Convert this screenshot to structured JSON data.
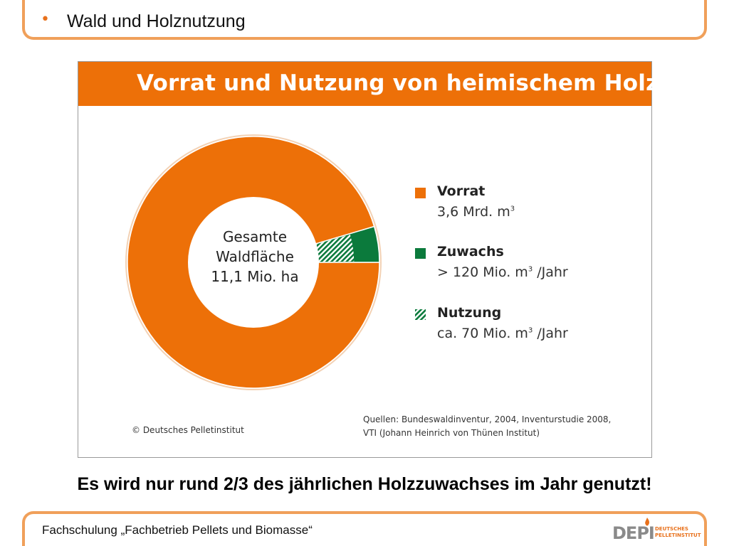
{
  "header": {
    "bullet": "•",
    "title": "Wald und Holznutzung"
  },
  "infographic": {
    "title": "Vorrat und Nutzung von heimischem Holz",
    "center_label": {
      "line1": "Gesamte",
      "line2": "Waldfläche",
      "line3": "11,1 Mio. ha"
    },
    "copyright": "© Deutsches Pelletinstitut",
    "sources": {
      "line1": "Quellen: Bundeswaldinventur, 2004, Inventurstudie 2008,",
      "line2": "VTI (Johann Heinrich von Thünen Institut)"
    }
  },
  "chart_data": {
    "type": "pie",
    "title": "Vorrat und Nutzung von heimischem Holz",
    "center_text": "Gesamte Waldfläche 11,1 Mio. ha",
    "slices": [
      {
        "name": "Vorrat",
        "value_text": "3,6 Mrd. m3",
        "share": 0.954,
        "color": "#ed7008",
        "pattern": "solid"
      },
      {
        "name": "Zuwachs",
        "value_text": "> 120 Mio. m3 /Jahr",
        "share": 0.046,
        "color": "#0b7a3c",
        "pattern": "solid"
      },
      {
        "name": "Nutzung",
        "value_text": "ca. 70 Mio. m3 /Jahr",
        "share_of_zuwachs": 0.58,
        "color": "#0b7a3c",
        "pattern": "hatched"
      }
    ],
    "legend": [
      {
        "label": "Vorrat",
        "value": "3,6 Mrd. m",
        "sup": "3",
        "suffix": ""
      },
      {
        "label": "Zuwachs",
        "value": "> 120 Mio. m",
        "sup": "3",
        "suffix": " /Jahr"
      },
      {
        "label": "Nutzung",
        "value": "ca. 70 Mio. m",
        "sup": "3",
        "suffix": " /Jahr"
      }
    ],
    "legend_placement": "right"
  },
  "conclusion": "Es wird nur rund 2/3 des jährlichen Holzzuwachses im Jahr genutzt!",
  "footer": {
    "text": "Fachschulung „Fachbetrieb Pellets und Biomasse“",
    "logo_main": "DEPI",
    "logo_sub_line1": "DEUTSCHES",
    "logo_sub_line2": "PELLETINSTITUT"
  },
  "colors": {
    "accent": "#ed7008",
    "frame": "#f0a05a",
    "green": "#0b7a3c"
  }
}
